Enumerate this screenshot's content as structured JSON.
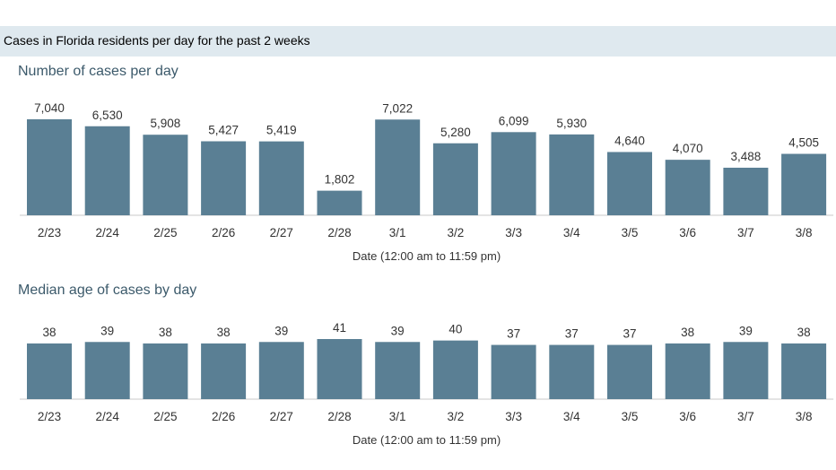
{
  "header": {
    "title": "Cases in Florida residents per day for the past 2 weeks"
  },
  "chart_data": [
    {
      "type": "bar",
      "title": "Number of cases per day",
      "xlabel": "Date (12:00 am to 11:59 pm)",
      "ylabel": "",
      "categories": [
        "2/23",
        "2/24",
        "2/25",
        "2/26",
        "2/27",
        "2/28",
        "3/1",
        "3/2",
        "3/3",
        "3/4",
        "3/5",
        "3/6",
        "3/7",
        "3/8"
      ],
      "values": [
        7040,
        6530,
        5908,
        5427,
        5419,
        1802,
        7022,
        5280,
        6099,
        5930,
        4640,
        4070,
        3488,
        4505
      ],
      "value_labels": [
        "7,040",
        "6,530",
        "5,908",
        "5,427",
        "5,419",
        "1,802",
        "7,022",
        "5,280",
        "6,099",
        "5,930",
        "4,640",
        "4,070",
        "3,488",
        "4,505"
      ],
      "ylim": [
        0,
        7040
      ],
      "color": "#5a7f94",
      "grid": false
    },
    {
      "type": "bar",
      "title": "Median age of cases by day",
      "xlabel": "Date (12:00 am to 11:59 pm)",
      "ylabel": "",
      "categories": [
        "2/23",
        "2/24",
        "2/25",
        "2/26",
        "2/27",
        "2/28",
        "3/1",
        "3/2",
        "3/3",
        "3/4",
        "3/5",
        "3/6",
        "3/7",
        "3/8"
      ],
      "values": [
        38,
        39,
        38,
        38,
        39,
        41,
        39,
        40,
        37,
        37,
        37,
        38,
        39,
        38
      ],
      "value_labels": [
        "38",
        "39",
        "38",
        "38",
        "39",
        "41",
        "39",
        "40",
        "37",
        "37",
        "37",
        "38",
        "39",
        "38"
      ],
      "ylim": [
        0,
        41
      ],
      "color": "#5a7f94",
      "grid": false
    }
  ]
}
